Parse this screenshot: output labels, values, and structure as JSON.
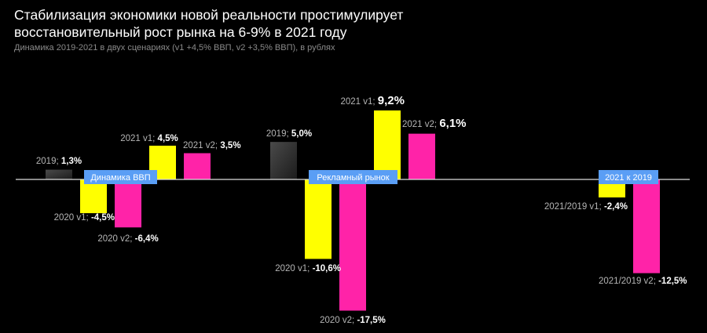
{
  "header": {
    "title_line1": "Стабилизация экономики новой реальности простимулирует",
    "title_line2": "восстановительный рост рынка на 6-9% в 2021 году",
    "subtitle": "Динамика 2019-2021 в двух сценариях (v1 +4,5% ВВП, v2 +3,5% ВВП), в рублях"
  },
  "colors": {
    "2019": "#3a3a3a",
    "v1": "#ffff00",
    "v2": "#ff23a8",
    "badge": "#5a9ef5",
    "axis": "#dddddd"
  },
  "chart_data": {
    "type": "bar",
    "title": "Стабилизация экономики новой реальности простимулирует восстановительный рост рынка на 6-9% в 2021 году",
    "unit": "%",
    "groups": [
      {
        "name": "Динамика ВВП",
        "bars": [
          {
            "key": "2019",
            "prefix": "2019; ",
            "value": 1.3,
            "text": "1,3%"
          },
          {
            "key": "v1",
            "prefix": "2020 v1; ",
            "value": -4.5,
            "text": "-4,5%"
          },
          {
            "key": "v2",
            "prefix": "2020 v2; ",
            "value": -6.4,
            "text": "-6,4%"
          },
          {
            "key": "v1",
            "prefix": "2021 v1; ",
            "value": 4.5,
            "text": "4,5%"
          },
          {
            "key": "v2",
            "prefix": "2021 v2; ",
            "value": 3.5,
            "text": "3,5%"
          }
        ]
      },
      {
        "name": "Рекламный рынок",
        "bars": [
          {
            "key": "2019",
            "prefix": "2019; ",
            "value": 5.0,
            "text": "5,0%"
          },
          {
            "key": "v1",
            "prefix": "2020 v1; ",
            "value": -10.6,
            "text": "-10,6%"
          },
          {
            "key": "v2",
            "prefix": "2020 v2; ",
            "value": -17.5,
            "text": "-17,5%"
          },
          {
            "key": "v1",
            "prefix": "2021 v1; ",
            "value": 9.2,
            "text": "9,2%"
          },
          {
            "key": "v2",
            "prefix": "2021 v2; ",
            "value": 6.1,
            "text": "6,1%"
          }
        ]
      },
      {
        "name": "2021 к 2019",
        "bars": [
          {
            "key": "v1",
            "prefix": "2021/2019 v1; ",
            "value": -2.4,
            "text": "-2,4%"
          },
          {
            "key": "v2",
            "prefix": "2021/2019 v2; ",
            "value": -12.5,
            "text": "-12,5%"
          }
        ]
      }
    ]
  }
}
